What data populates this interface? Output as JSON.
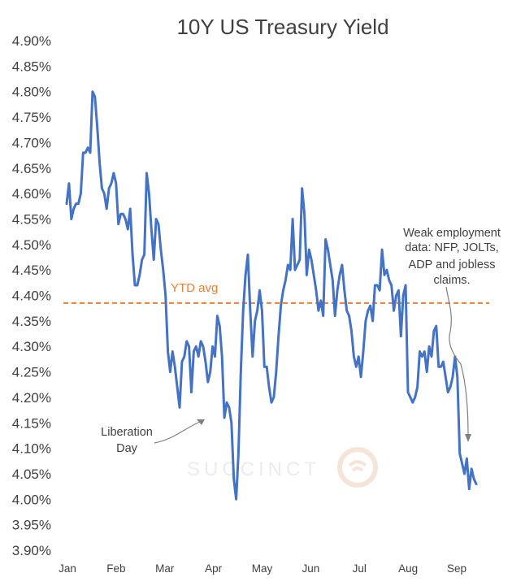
{
  "chart_data": {
    "type": "line",
    "title": "10Y US Treasury Yield",
    "xlabel": "",
    "ylabel": "",
    "ylim": [
      3.9,
      4.9
    ],
    "ytick_step": 0.05,
    "yticks": [
      "4.90%",
      "4.85%",
      "4.80%",
      "4.75%",
      "4.70%",
      "4.65%",
      "4.60%",
      "4.55%",
      "4.50%",
      "4.45%",
      "4.40%",
      "4.35%",
      "4.30%",
      "4.25%",
      "4.20%",
      "4.15%",
      "4.10%",
      "4.05%",
      "4.00%",
      "3.95%",
      "3.90%"
    ],
    "months": [
      "Jan",
      "Feb",
      "Mar",
      "Apr",
      "May",
      "Jun",
      "Jul",
      "Aug",
      "Sep"
    ],
    "grid": false,
    "line_color": "#4472c4",
    "series": [
      {
        "name": "10Y US Treasury Yield",
        "values": [
          4.58,
          4.62,
          4.55,
          4.57,
          4.58,
          4.58,
          4.6,
          4.68,
          4.68,
          4.69,
          4.68,
          4.8,
          4.79,
          4.73,
          4.66,
          4.61,
          4.6,
          4.57,
          4.61,
          4.62,
          4.64,
          4.62,
          4.54,
          4.56,
          4.56,
          4.55,
          4.53,
          4.57,
          4.48,
          4.42,
          4.42,
          4.44,
          4.47,
          4.48,
          4.64,
          4.6,
          4.53,
          4.47,
          4.55,
          4.54,
          4.49,
          4.45,
          4.4,
          4.29,
          4.25,
          4.29,
          4.26,
          4.22,
          4.18,
          4.27,
          4.28,
          4.31,
          4.3,
          4.21,
          4.29,
          4.3,
          4.28,
          4.31,
          4.3,
          4.27,
          4.23,
          4.25,
          4.3,
          4.28,
          4.36,
          4.34,
          4.28,
          4.16,
          4.19,
          4.18,
          4.15,
          4.04,
          4.0,
          4.09,
          4.25,
          4.37,
          4.44,
          4.48,
          4.37,
          4.28,
          4.35,
          4.37,
          4.41,
          4.37,
          4.26,
          4.26,
          4.22,
          4.19,
          4.2,
          4.25,
          4.32,
          4.38,
          4.41,
          4.43,
          4.46,
          4.45,
          4.55,
          4.45,
          4.46,
          4.47,
          4.61,
          4.56,
          4.44,
          4.49,
          4.47,
          4.44,
          4.41,
          4.37,
          4.39,
          4.36,
          4.51,
          4.49,
          4.46,
          4.43,
          4.36,
          4.41,
          4.44,
          4.46,
          4.41,
          4.37,
          4.36,
          4.33,
          4.28,
          4.26,
          4.28,
          4.24,
          4.29,
          4.35,
          4.37,
          4.38,
          4.35,
          4.42,
          4.42,
          4.41,
          4.49,
          4.44,
          4.45,
          4.43,
          4.42,
          4.37,
          4.4,
          4.41,
          4.32,
          4.4,
          4.42,
          4.21,
          4.2,
          4.19,
          4.2,
          4.22,
          4.29,
          4.28,
          4.29,
          4.25,
          4.3,
          4.28,
          4.33,
          4.34,
          4.26,
          4.26,
          4.27,
          4.24,
          4.21,
          4.22,
          4.24,
          4.28,
          4.24,
          4.09,
          4.07,
          4.05,
          4.08,
          4.02,
          4.06,
          4.04,
          4.03
        ]
      }
    ],
    "reference_line": {
      "label": "YTD avg",
      "value": 4.385,
      "color": "#ed7d31"
    },
    "annotations": [
      {
        "text_lines": [
          "Liberation",
          "Day"
        ],
        "date_month": 3.52,
        "value": 4.155
      },
      {
        "text_lines": [
          "Weak employment",
          "data: NFP, JOLTs,",
          "ADP and jobless",
          "claims."
        ],
        "date_month": 8.3,
        "value": 4.06
      }
    ]
  },
  "watermark": {
    "text": "SUCCINCT"
  }
}
